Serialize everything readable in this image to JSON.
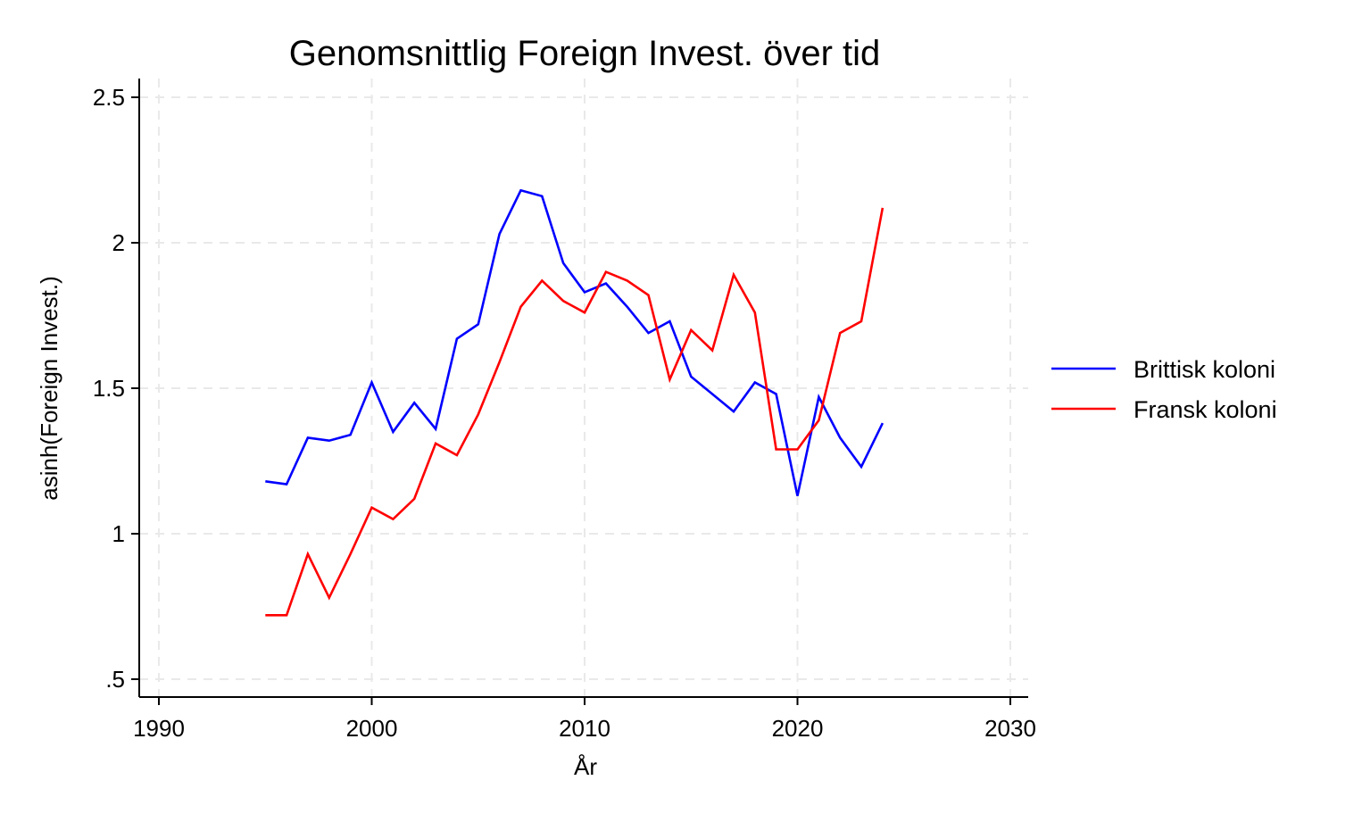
{
  "chart_data": {
    "type": "line",
    "title": "Genomsnittlig Foreign Invest. över tid",
    "xlabel": "År",
    "ylabel": "asinh(Foreign Invest.)",
    "xlim": [
      1990,
      2030
    ],
    "ylim": [
      0.5,
      2.5
    ],
    "xticks": [
      1990,
      2000,
      2010,
      2020,
      2030
    ],
    "xtick_labels": [
      "1990",
      "2000",
      "2010",
      "2020",
      "2030"
    ],
    "yticks": [
      0.5,
      1,
      1.5,
      2,
      2.5
    ],
    "ytick_labels": [
      ".5",
      "1",
      "1.5",
      "2",
      "2.5"
    ],
    "grid": true,
    "legend_position": "right",
    "x": [
      1995,
      1996,
      1997,
      1998,
      1999,
      2000,
      2001,
      2002,
      2003,
      2004,
      2005,
      2006,
      2007,
      2008,
      2009,
      2010,
      2011,
      2012,
      2013,
      2014,
      2015,
      2016,
      2017,
      2018,
      2019,
      2020,
      2021,
      2022,
      2023,
      2024
    ],
    "series": [
      {
        "name": "Brittisk koloni",
        "color": "#0000ff",
        "values": [
          1.18,
          1.17,
          1.33,
          1.32,
          1.34,
          1.52,
          1.35,
          1.45,
          1.36,
          1.67,
          1.72,
          2.03,
          2.18,
          2.16,
          1.93,
          1.83,
          1.86,
          1.78,
          1.69,
          1.73,
          1.54,
          1.48,
          1.42,
          1.52,
          1.48,
          1.13,
          1.47,
          1.33,
          1.23,
          1.38
        ]
      },
      {
        "name": "Fransk koloni",
        "color": "#ff0000",
        "values": [
          0.72,
          0.72,
          0.93,
          0.78,
          0.93,
          1.09,
          1.05,
          1.12,
          1.31,
          1.27,
          1.41,
          1.59,
          1.78,
          1.87,
          1.8,
          1.76,
          1.9,
          1.87,
          1.82,
          1.53,
          1.7,
          1.63,
          1.89,
          1.76,
          1.29,
          1.29,
          1.39,
          1.69,
          1.73,
          2.12
        ]
      }
    ]
  }
}
